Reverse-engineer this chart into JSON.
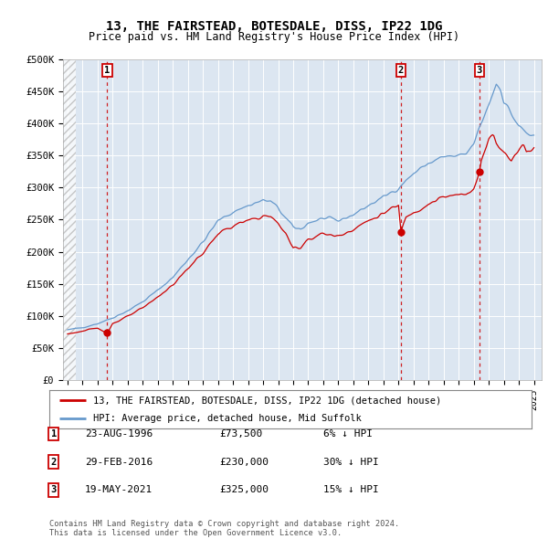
{
  "title": "13, THE FAIRSTEAD, BOTESDALE, DISS, IP22 1DG",
  "subtitle": "Price paid vs. HM Land Registry's House Price Index (HPI)",
  "ylim": [
    0,
    500000
  ],
  "yticks": [
    0,
    50000,
    100000,
    150000,
    200000,
    250000,
    300000,
    350000,
    400000,
    450000,
    500000
  ],
  "ytick_labels": [
    "£0",
    "£50K",
    "£100K",
    "£150K",
    "£200K",
    "£250K",
    "£300K",
    "£350K",
    "£400K",
    "£450K",
    "£500K"
  ],
  "sale_dates_num": [
    1996.64,
    2016.16,
    2021.38
  ],
  "sale_prices": [
    73500,
    230000,
    325000
  ],
  "sale_labels": [
    "1",
    "2",
    "3"
  ],
  "sale_info": [
    {
      "num": "1",
      "date": "23-AUG-1996",
      "price": "£73,500",
      "hpi": "6% ↓ HPI"
    },
    {
      "num": "2",
      "date": "29-FEB-2016",
      "price": "£230,000",
      "hpi": "30% ↓ HPI"
    },
    {
      "num": "3",
      "date": "19-MAY-2021",
      "price": "£325,000",
      "hpi": "15% ↓ HPI"
    }
  ],
  "legend_line1": "13, THE FAIRSTEAD, BOTESDALE, DISS, IP22 1DG (detached house)",
  "legend_line2": "HPI: Average price, detached house, Mid Suffolk",
  "footer1": "Contains HM Land Registry data © Crown copyright and database right 2024.",
  "footer2": "This data is licensed under the Open Government Licence v3.0.",
  "bg_color": "#dce6f1",
  "hatch_color": "#b0b0b0",
  "red_line_color": "#cc0000",
  "blue_line_color": "#6699cc",
  "grid_color": "#ffffff",
  "xlim": [
    1993.7,
    2025.5
  ],
  "xticks": [
    1994,
    1995,
    1996,
    1997,
    1998,
    1999,
    2000,
    2001,
    2002,
    2003,
    2004,
    2005,
    2006,
    2007,
    2008,
    2009,
    2010,
    2011,
    2012,
    2013,
    2014,
    2015,
    2016,
    2017,
    2018,
    2019,
    2020,
    2021,
    2022,
    2023,
    2024,
    2025
  ],
  "hatch_end": 1994.55
}
